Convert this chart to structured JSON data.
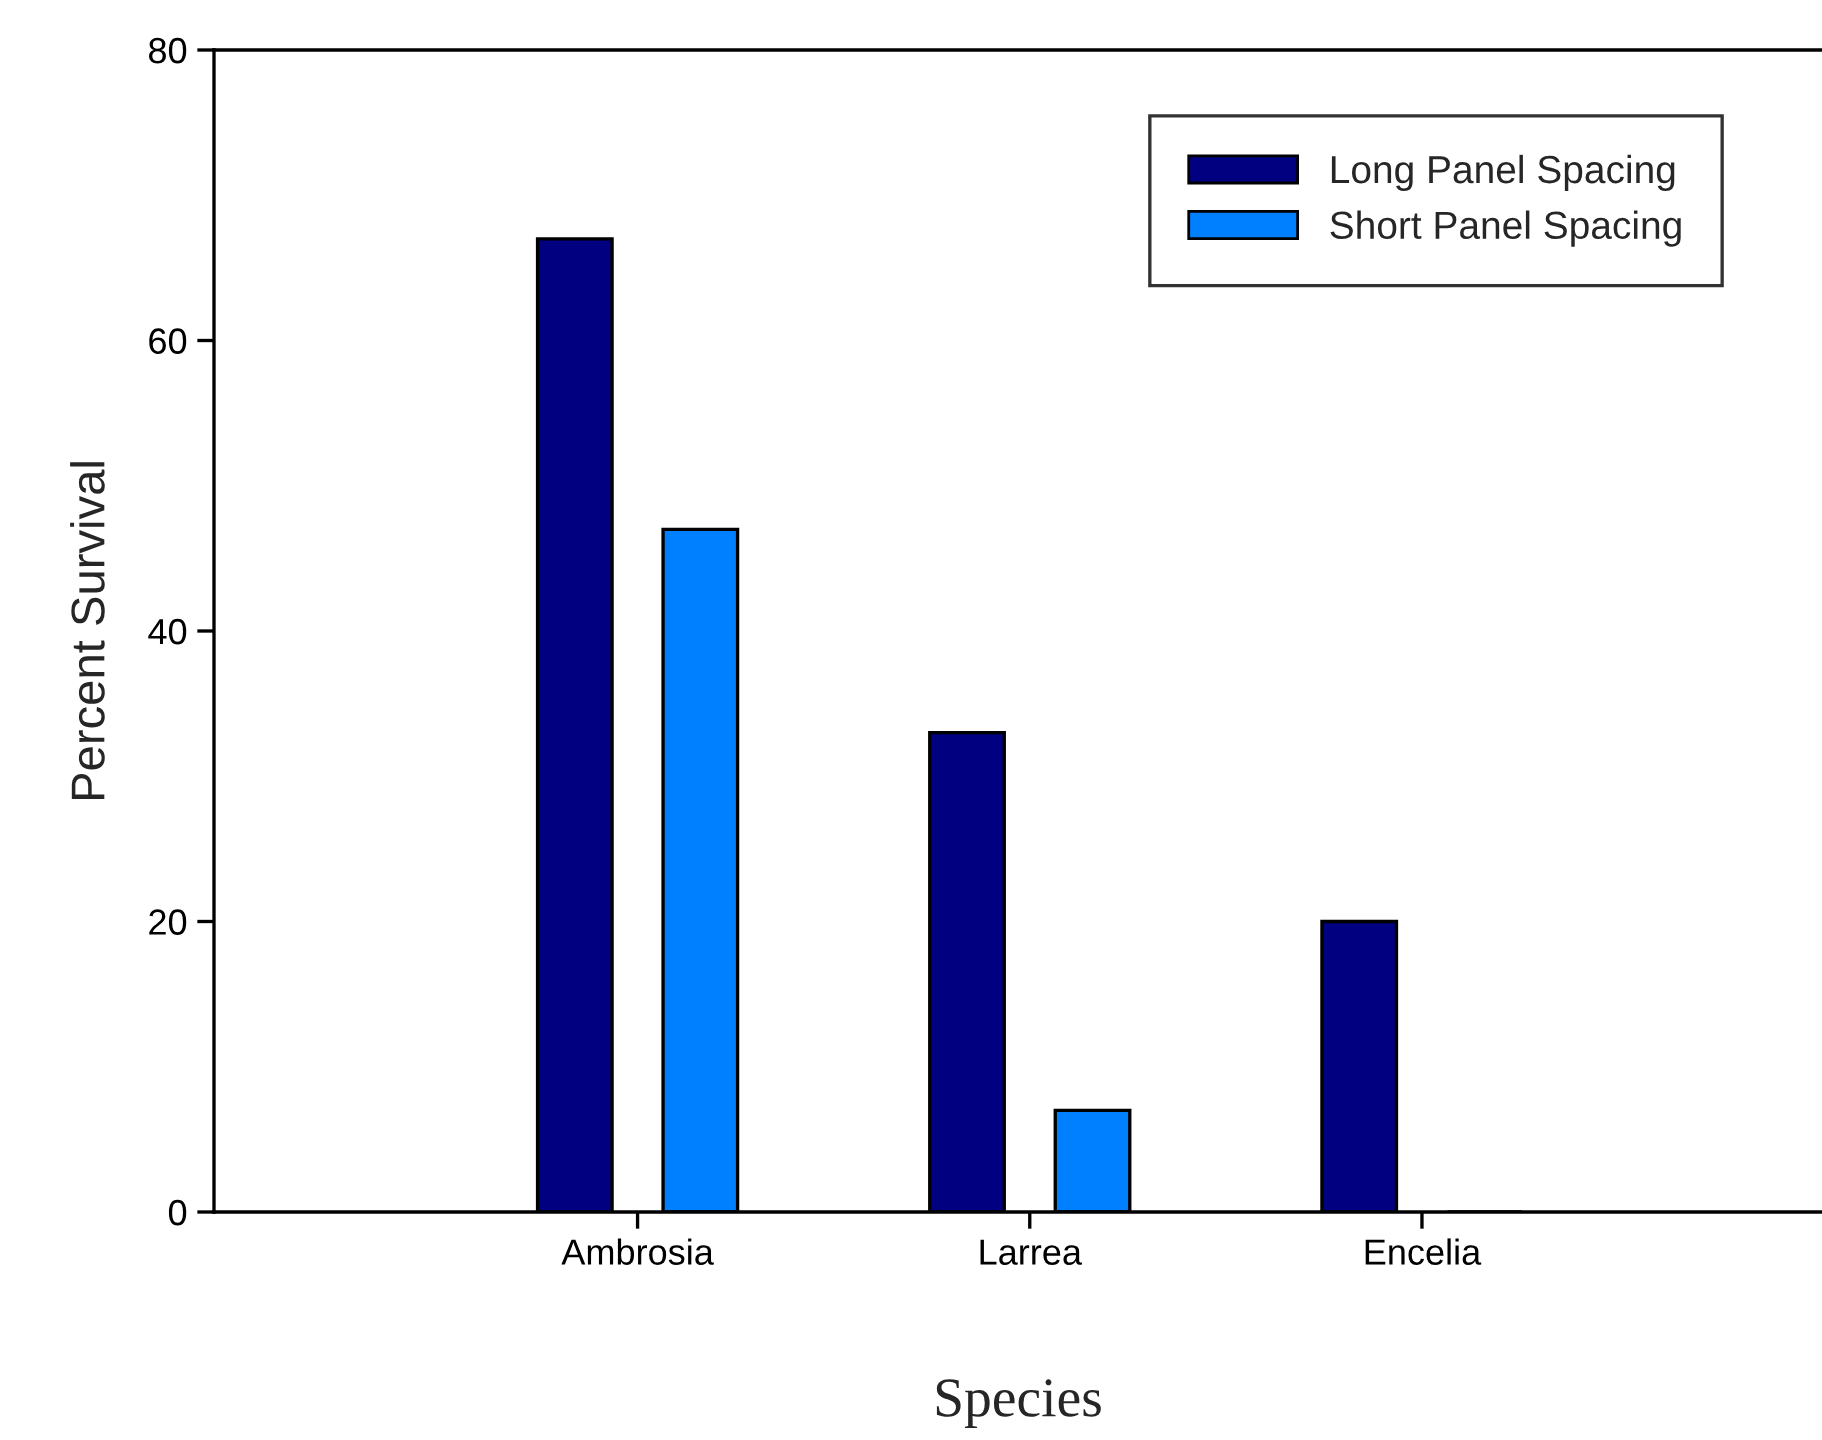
{
  "chart_data": {
    "type": "bar",
    "xlabel": "Species",
    "ylabel": "Percent Survival",
    "categories": [
      "Ambrosia",
      "Larrea",
      "Encelia"
    ],
    "series": [
      {
        "name": "Long Panel Spacing",
        "color": "#000080",
        "values": [
          67,
          33,
          20
        ]
      },
      {
        "name": "Short Panel Spacing",
        "color": "#0080ff",
        "values": [
          47,
          7,
          0
        ]
      }
    ],
    "ylim": [
      0,
      80
    ],
    "yticks": [
      0,
      20,
      40,
      60,
      80
    ],
    "grid": false,
    "legend": "top right"
  }
}
